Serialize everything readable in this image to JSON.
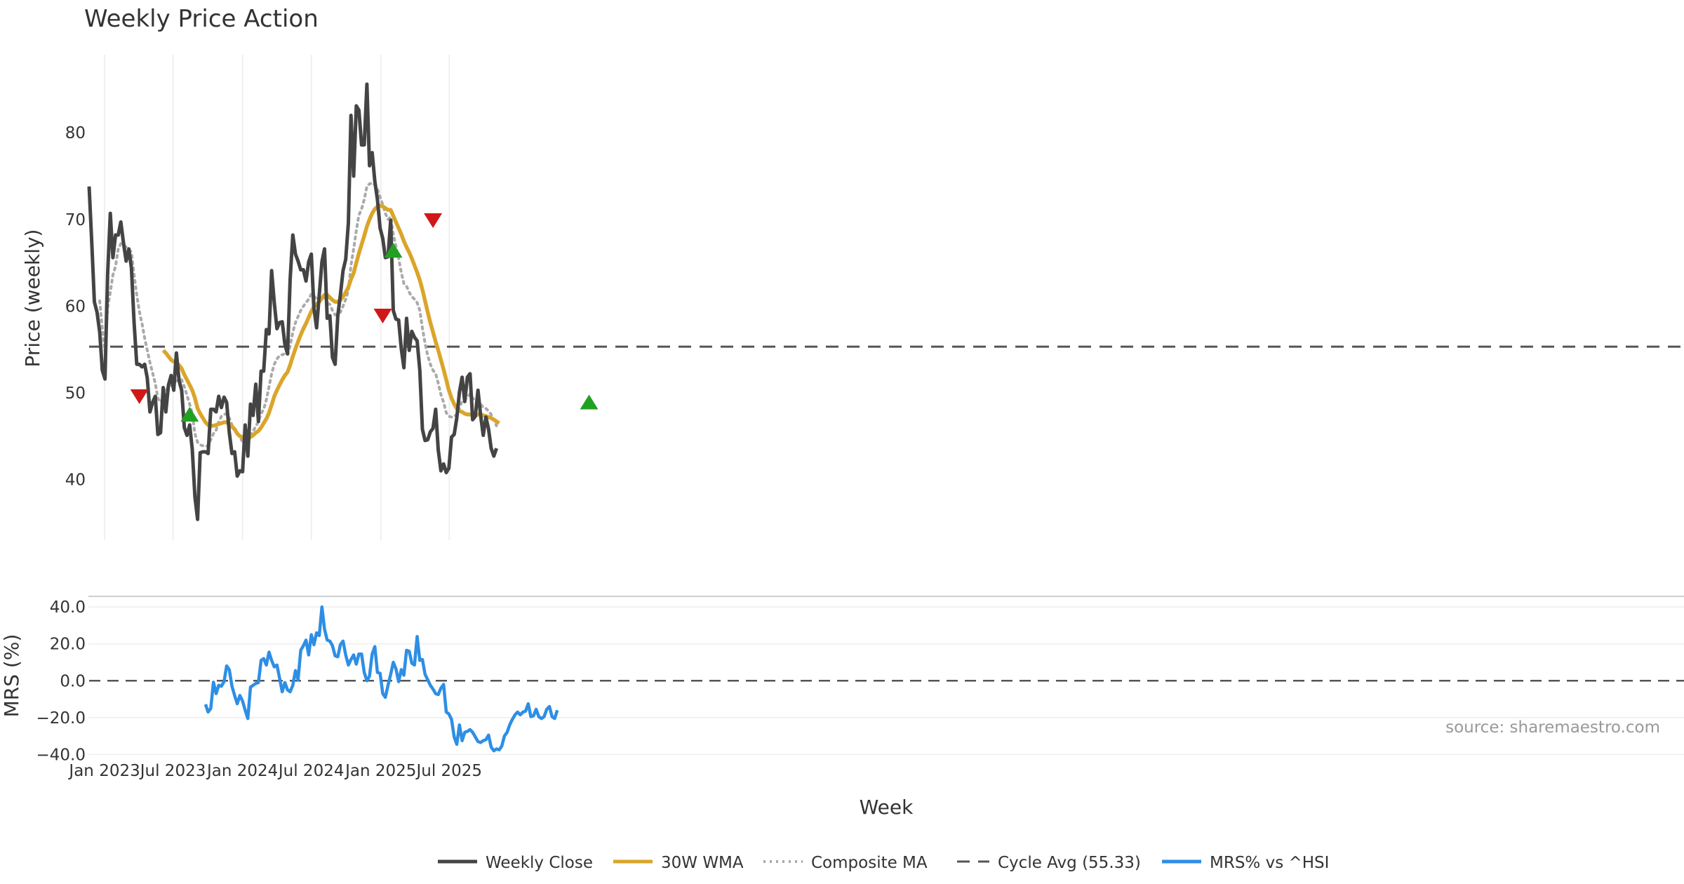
{
  "chart_data": [
    {
      "type": "line",
      "title": "Weekly Price Action",
      "ylabel": "Price (weekly)",
      "ylim": [
        33,
        89
      ],
      "yticks": [
        40,
        50,
        60,
        70,
        80
      ],
      "x_start": "2022-11-21",
      "x_interval_days": 7,
      "cycle_avg": 55.33,
      "grid": "x",
      "series": [
        {
          "name": "Weekly Close",
          "color": "#444444",
          "values": [
            73.8,
            67.3,
            60.5,
            59.3,
            57.0,
            52.6,
            51.6,
            63.7,
            70.7,
            65.6,
            68.2,
            68.2,
            69.7,
            67.3,
            65.2,
            66.6,
            64.4,
            58.1,
            53.3,
            53.3,
            53.0,
            53.3,
            51.7,
            47.8,
            48.9,
            49.6,
            45.2,
            45.4,
            50.6,
            47.8,
            50.9,
            52.0,
            50.3,
            54.6,
            51.4,
            50.3,
            46.0,
            45.1,
            46.3,
            43.5,
            38.0,
            35.4,
            43.1,
            43.2,
            43.2,
            43.0,
            48.1,
            48.1,
            47.8,
            49.6,
            48.3,
            49.5,
            48.9,
            45.4,
            43.0,
            43.2,
            40.4,
            41.0,
            40.9,
            46.3,
            42.7,
            48.7,
            47.4,
            51.0,
            46.7,
            52.5,
            52.5,
            57.3,
            56.8,
            64.1,
            60.4,
            57.4,
            58.1,
            58.2,
            55.6,
            54.5,
            63.1,
            68.2,
            66.0,
            65.2,
            64.2,
            64.2,
            62.9,
            65.1,
            66.0,
            59.8,
            57.5,
            61.3,
            65.1,
            66.6,
            58.6,
            58.9,
            54.1,
            53.3,
            58.9,
            61.3,
            64.1,
            65.4,
            69.6,
            82.0,
            75.0,
            83.1,
            82.6,
            78.6,
            78.6,
            85.6,
            76.2,
            77.7,
            74.4,
            72.3,
            69.0,
            67.8,
            65.6,
            65.7,
            69.9,
            59.5,
            58.5,
            58.4,
            55.1,
            52.9,
            58.6,
            54.9,
            57.1,
            56.4,
            56.0,
            52.6,
            45.8,
            44.5,
            44.6,
            45.5,
            45.9,
            48.1,
            43.4,
            41.0,
            41.8,
            40.8,
            41.3,
            44.9,
            45.2,
            47.1,
            50.1,
            51.8,
            49.0,
            51.8,
            52.2,
            46.9,
            47.3,
            50.3,
            47.4,
            45.1,
            47.2,
            45.8,
            43.6,
            42.7,
            43.6
          ]
        },
        {
          "name": "30W WMA",
          "color": "#DAA52A",
          "values": [
            null,
            null,
            null,
            null,
            null,
            null,
            null,
            null,
            null,
            null,
            null,
            null,
            null,
            null,
            null,
            null,
            null,
            null,
            null,
            null,
            null,
            null,
            null,
            null,
            null,
            null,
            null,
            null,
            54.9,
            54.6,
            54.2,
            53.8,
            53.6,
            53.5,
            53.2,
            52.8,
            52.1,
            51.5,
            50.9,
            50.3,
            49.4,
            48.2,
            47.6,
            47.1,
            46.6,
            46.3,
            46.2,
            46.2,
            46.3,
            46.4,
            46.5,
            46.6,
            46.6,
            46.4,
            46.1,
            45.8,
            45.3,
            45.0,
            44.9,
            44.9,
            44.8,
            44.9,
            45.1,
            45.4,
            45.6,
            46.0,
            46.5,
            47.0,
            47.7,
            48.6,
            49.6,
            50.3,
            50.9,
            51.5,
            52.0,
            52.4,
            53.2,
            54.2,
            55.1,
            55.9,
            56.7,
            57.4,
            58.0,
            58.7,
            59.4,
            59.9,
            60.2,
            60.5,
            60.9,
            61.3,
            61.3,
            61.0,
            60.7,
            60.5,
            60.5,
            60.7,
            61.1,
            61.6,
            62.2,
            63.1,
            63.8,
            65.0,
            66.1,
            67.1,
            68.1,
            69.2,
            70.0,
            70.7,
            71.2,
            71.5,
            71.6,
            71.5,
            71.3,
            71.1,
            71.1,
            70.4,
            69.7,
            69.0,
            68.3,
            67.5,
            66.8,
            66.2,
            65.5,
            64.7,
            63.9,
            63.0,
            61.9,
            60.6,
            59.3,
            58.1,
            57.0,
            55.9,
            54.9,
            53.8,
            52.7,
            51.5,
            50.3,
            49.4,
            48.7,
            48.2,
            47.9,
            47.8,
            47.6,
            47.5,
            47.5,
            47.4,
            47.4,
            47.5,
            47.5,
            47.4,
            47.3,
            47.2,
            47.1,
            46.9,
            46.7,
            46.5
          ]
        },
        {
          "name": "Composite MA",
          "color": "#AAAAAA",
          "values": [
            null,
            null,
            null,
            null,
            60.6,
            57.5,
            54.8,
            59.8,
            61.6,
            63.6,
            64.6,
            66.6,
            67.2,
            67.1,
            66.8,
            66.6,
            66.2,
            63.6,
            61.3,
            59.4,
            58.0,
            56.3,
            54.9,
            53.5,
            52.3,
            51.1,
            49.4,
            48.9,
            49.2,
            50.2,
            50.7,
            50.9,
            51.1,
            51.4,
            51.5,
            51.5,
            50.7,
            49.7,
            48.7,
            47.6,
            45.3,
            44.3,
            44.0,
            43.9,
            43.8,
            43.9,
            44.6,
            45.3,
            45.7,
            46.6,
            47.3,
            47.5,
            47.6,
            47.1,
            46.3,
            45.9,
            45.4,
            44.8,
            44.4,
            44.5,
            44.7,
            45.1,
            45.6,
            46.1,
            46.7,
            47.6,
            48.1,
            49.2,
            50.7,
            52.2,
            53.3,
            53.9,
            54.3,
            54.4,
            54.5,
            54.4,
            55.4,
            57.0,
            58.1,
            58.8,
            59.5,
            60.0,
            60.4,
            60.8,
            61.4,
            61.2,
            60.8,
            60.4,
            60.8,
            61.2,
            60.4,
            60.2,
            59.5,
            59.0,
            59.1,
            59.3,
            60.0,
            60.8,
            61.8,
            64.7,
            66.6,
            68.7,
            70.5,
            71.2,
            72.3,
            73.8,
            74.1,
            74.2,
            74.0,
            73.5,
            72.6,
            71.7,
            70.7,
            70.0,
            70.3,
            68.3,
            66.9,
            65.5,
            63.9,
            62.6,
            62.3,
            61.6,
            61.1,
            60.8,
            60.4,
            59.5,
            57.5,
            55.7,
            54.3,
            53.3,
            52.6,
            52.2,
            51.1,
            49.8,
            48.9,
            47.7,
            47.3,
            47.2,
            47.3,
            47.5,
            48.2,
            49.1,
            49.2,
            49.5,
            49.9,
            49.4,
            49.1,
            49.1,
            48.7,
            48.3,
            48.2,
            47.9,
            47.5,
            46.9,
            46.2
          ]
        }
      ],
      "signals_up": [
        {
          "x": 38,
          "y": 47.5
        },
        {
          "x": 115,
          "y": 66.4
        },
        {
          "x": 189,
          "y": 48.9
        }
      ],
      "signals_down": [
        {
          "x": 19,
          "y": 49.6
        },
        {
          "x": 111,
          "y": 58.9
        },
        {
          "x": 130,
          "y": 69.9
        }
      ]
    },
    {
      "type": "line",
      "ylabel": "MRS (%)",
      "xlabel": "Week",
      "ylim": [
        -41,
        45
      ],
      "yticks": [
        "40.0",
        "20.0",
        "0.0",
        "−20.0",
        "−40.0"
      ],
      "xticks": [
        "Jan 2023",
        "Jul 2023",
        "Jan 2024",
        "Jul 2024",
        "Jan 2025",
        "Jul 2025"
      ],
      "series": [
        {
          "name": "MRS% vs ^HSI",
          "color": "#2E8EE5",
          "values": [
            null,
            null,
            null,
            null,
            null,
            null,
            null,
            null,
            null,
            null,
            null,
            null,
            null,
            null,
            null,
            null,
            null,
            null,
            null,
            null,
            null,
            null,
            null,
            null,
            null,
            null,
            null,
            null,
            null,
            null,
            null,
            null,
            null,
            null,
            null,
            null,
            null,
            null,
            null,
            null,
            null,
            null,
            null,
            null,
            -12.8,
            -17.0,
            -15.0,
            -0.8,
            -7.0,
            -2.5,
            -3.0,
            -0.5,
            8.0,
            6.0,
            -3.0,
            -8.0,
            -12.5,
            -8.0,
            -11.0,
            -16.0,
            -20.5,
            -3.5,
            -2.5,
            -1.5,
            -1.0,
            11.0,
            12.0,
            8.5,
            15.5,
            11.0,
            7.5,
            8.5,
            1.5,
            -6.0,
            -1.0,
            -5.0,
            -6.0,
            -2.5,
            5.5,
            0.5,
            16.5,
            19.0,
            22.0,
            14.0,
            25.0,
            19.5,
            26.0,
            24.5,
            40.0,
            28.0,
            22.0,
            21.5,
            19.0,
            13.5,
            13.0,
            19.5,
            21.5,
            14.0,
            8.5,
            11.5,
            14.0,
            9.0,
            14.5,
            14.5,
            4.5,
            0.0,
            2.5,
            14.5,
            18.5,
            4.5,
            4.0,
            -7.0,
            -9.0,
            -2.5,
            3.5,
            10.0,
            6.5,
            -0.5,
            6.0,
            3.0,
            16.5,
            16.0,
            9.5,
            8.5,
            24.0,
            11.0,
            11.5,
            3.5,
            0.5,
            -2.5,
            -4.5,
            -7.0,
            -7.5,
            -4.0,
            -2.0,
            -17.0,
            -18.0,
            -21.0,
            -30.5,
            -34.5,
            -24.0,
            -32.5,
            -28.0,
            -27.5,
            -26.5,
            -28.0,
            -30.5,
            -33.0,
            -33.5,
            -32.5,
            -32.0,
            -29.5,
            -36.0,
            -38.0,
            -37.0,
            -37.5,
            -35.5,
            -30.0,
            -28.0,
            -24.0,
            -21.0,
            -18.5,
            -17.0,
            -18.5,
            -17.0,
            -16.5,
            -12.5,
            -19.5,
            -19.0,
            -15.5,
            -19.5,
            -20.5,
            -19.5,
            -15.5,
            -14.0,
            -19.5,
            -20.5,
            -16.0
          ]
        }
      ]
    }
  ],
  "legend": {
    "weekly_close": "Weekly Close",
    "wma": "30W WMA",
    "composite": "Composite MA",
    "cycle_avg": "Cycle Avg (55.33)",
    "mrs": "MRS% vs ^HSI"
  },
  "source": "source: sharemaestro.com",
  "colors": {
    "up_signal": "#22A022",
    "down_signal": "#D01818",
    "cycle_line": "#555555",
    "grid": "#EBEBEB"
  }
}
